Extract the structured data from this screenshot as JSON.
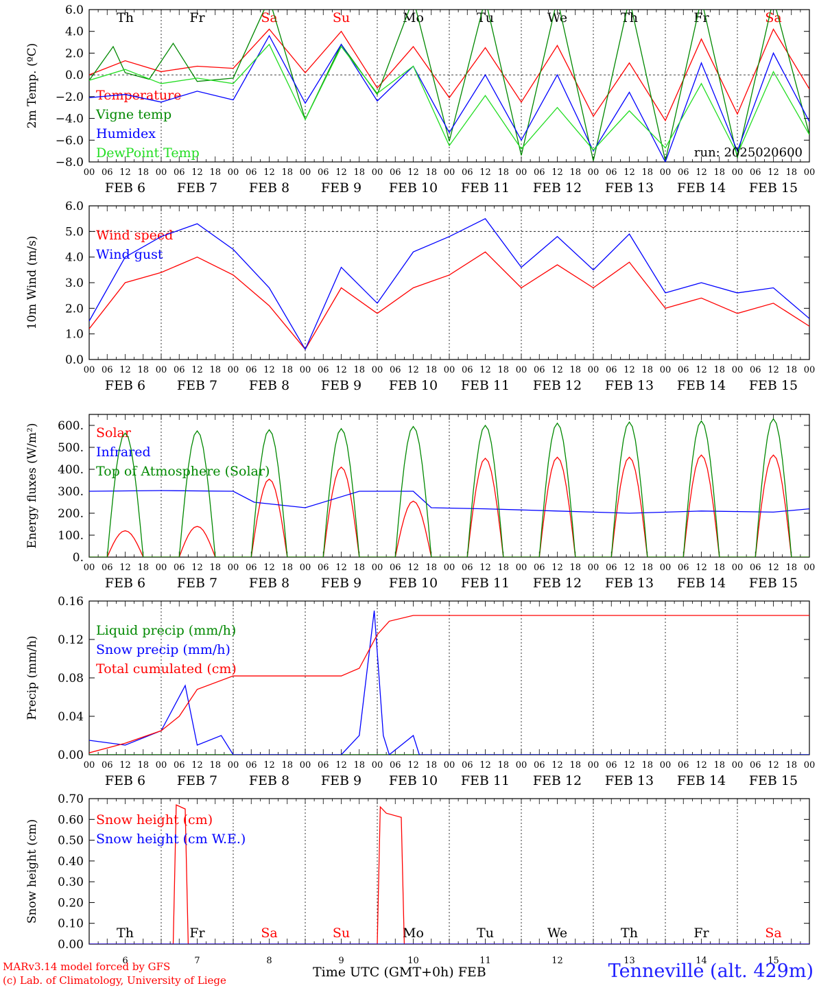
{
  "footer": {
    "model": "MARv3.14 model forced by GFS",
    "lab": "(c) Lab. of Climatology, University of Liege",
    "station": "Tenneville (alt. 429m)",
    "xaxis_title": "Time UTC (GMT+0h) FEB"
  },
  "colors": {
    "red": "#ff0000",
    "green": "#008800",
    "blue": "#0000ff",
    "lightgreen": "#22dd22",
    "weekend": "#ff0000"
  },
  "chart_data": {
    "days": [
      {
        "abbr": "Th",
        "date": "FEB 6",
        "num": "6",
        "weekend": false
      },
      {
        "abbr": "Fr",
        "date": "FEB 7",
        "num": "7",
        "weekend": false
      },
      {
        "abbr": "Sa",
        "date": "FEB 8",
        "num": "8",
        "weekend": true
      },
      {
        "abbr": "Su",
        "date": "FEB 9",
        "num": "9",
        "weekend": true
      },
      {
        "abbr": "Mo",
        "date": "FEB 10",
        "num": "10",
        "weekend": false
      },
      {
        "abbr": "Tu",
        "date": "FEB 11",
        "num": "11",
        "weekend": false
      },
      {
        "abbr": "We",
        "date": "FEB 12",
        "num": "12",
        "weekend": false
      },
      {
        "abbr": "Th",
        "date": "FEB 13",
        "num": "13",
        "weekend": false
      },
      {
        "abbr": "Fr",
        "date": "FEB 14",
        "num": "14",
        "weekend": false
      },
      {
        "abbr": "Sa",
        "date": "FEB 15",
        "num": "15",
        "weekend": true
      }
    ],
    "hour_labels": [
      "00",
      "06",
      "12",
      "18"
    ],
    "panels": [
      {
        "type": "line",
        "ylabel": "2m Temp. (ºC)",
        "ylim": [
          -8,
          6
        ],
        "yticks": [
          -8,
          -6,
          -4,
          -2,
          0,
          2,
          4,
          6
        ],
        "ytick_labels": [
          "−8.0",
          "−6.0",
          "−4.0",
          "−2.0",
          "0.0",
          "2.0",
          "4.0",
          "6.0"
        ],
        "ref_line": 0,
        "run_label": "run: 2025020600",
        "show_day_abbr": true,
        "series": [
          {
            "name": "Temperature",
            "color": "#ff0000",
            "x": [
              0,
              12,
              24,
              36,
              48,
              60,
              72,
              84,
              96,
              108,
              120,
              132,
              144,
              156,
              168,
              180,
              192,
              204,
              216,
              228,
              240
            ],
            "y": [
              0,
              1.3,
              0.3,
              0.8,
              0.6,
              4.2,
              0.2,
              4.0,
              -1.2,
              2.6,
              -2.1,
              2.5,
              -2.5,
              2.7,
              -3.8,
              1.1,
              -4.2,
              3.3,
              -3.6,
              4.2,
              -1.3
            ]
          },
          {
            "name": "Vigne temp",
            "color": "#008800",
            "x": [
              0,
              8,
              12,
              20,
              28,
              36,
              48,
              60,
              72,
              84,
              96,
              108,
              120,
              132,
              144,
              156,
              168,
              180,
              192,
              204,
              216,
              228,
              240
            ],
            "y": [
              -0.5,
              2.6,
              0.2,
              -0.4,
              2.9,
              -0.6,
              -0.3,
              7,
              -4.1,
              2.8,
              -1.8,
              7,
              -6.1,
              7,
              -7.4,
              7,
              -7.9,
              7,
              -7.9,
              7,
              -7.6,
              7,
              -5.5
            ]
          },
          {
            "name": "Humidex",
            "color": "#0000ff",
            "x": [
              0,
              12,
              24,
              36,
              48,
              60,
              72,
              84,
              96,
              108,
              120,
              132,
              144,
              156,
              168,
              180,
              192,
              204,
              216,
              228,
              240
            ],
            "y": [
              -2.1,
              -1.8,
              -2.5,
              -1.5,
              -2.3,
              3.6,
              -2.6,
              2.8,
              -2.4,
              0.8,
              -5.3,
              0,
              -6.0,
              0,
              -7.0,
              -1.6,
              -8,
              1.1,
              -7.0,
              2.0,
              -4.3
            ]
          },
          {
            "name": "DewPoint Temp",
            "color": "#22dd22",
            "x": [
              0,
              12,
              24,
              36,
              48,
              60,
              72,
              84,
              96,
              108,
              120,
              132,
              144,
              156,
              168,
              180,
              192,
              204,
              216,
              228,
              240
            ],
            "y": [
              -0.5,
              0.5,
              -0.8,
              -0.3,
              -0.8,
              2.8,
              -4.1,
              2.6,
              -1.7,
              0.8,
              -6.5,
              -1.9,
              -6.8,
              -3.0,
              -6.9,
              -3.3,
              -6.7,
              -0.8,
              -7.3,
              0.3,
              -5.5
            ]
          }
        ]
      },
      {
        "type": "line",
        "ylabel": "10m Wind (m/s)",
        "ylim": [
          0,
          6
        ],
        "yticks": [
          0,
          1,
          2,
          3,
          4,
          5,
          6
        ],
        "ytick_labels": [
          "0.0",
          "1.0",
          "2.0",
          "3.0",
          "4.0",
          "5.0",
          "6.0"
        ],
        "ref_line": 5,
        "show_day_abbr": false,
        "series": [
          {
            "name": "Wind speed",
            "color": "#ff0000",
            "x": [
              0,
              12,
              24,
              36,
              48,
              60,
              72,
              84,
              96,
              108,
              120,
              132,
              144,
              156,
              168,
              180,
              192,
              204,
              216,
              228,
              240
            ],
            "y": [
              1.2,
              3.0,
              3.4,
              4.0,
              3.3,
              2.1,
              0.4,
              2.8,
              1.8,
              2.8,
              3.3,
              4.2,
              2.8,
              3.7,
              2.8,
              3.8,
              2.0,
              2.4,
              1.8,
              2.2,
              1.3
            ]
          },
          {
            "name": "Wind gust",
            "color": "#0000ff",
            "x": [
              0,
              12,
              24,
              36,
              48,
              60,
              72,
              84,
              96,
              108,
              120,
              132,
              144,
              156,
              168,
              180,
              192,
              204,
              216,
              228,
              240
            ],
            "y": [
              1.5,
              4.0,
              4.8,
              5.3,
              4.3,
              2.8,
              0.4,
              3.6,
              2.2,
              4.2,
              4.8,
              5.5,
              3.6,
              4.8,
              3.5,
              4.9,
              2.6,
              3.0,
              2.6,
              2.8,
              1.6
            ]
          }
        ]
      },
      {
        "type": "line",
        "ylabel": "Energy fluxes (W/m²)",
        "ylim": [
          0,
          650
        ],
        "yticks": [
          0,
          100,
          200,
          300,
          400,
          500,
          600
        ],
        "ytick_labels": [
          "0.",
          "100.",
          "200.",
          "300.",
          "400.",
          "500.",
          "600."
        ],
        "show_day_abbr": false,
        "series": [
          {
            "name": "Solar",
            "peak_hour": 12,
            "color": "#ff0000",
            "daily_peaks": [
              120,
              140,
              355,
              410,
              255,
              450,
              455,
              455,
              465,
              465
            ]
          },
          {
            "name": "Infrared",
            "color": "#0000ff",
            "x": [
              0,
              24,
              48,
              55,
              72,
              90,
              96,
              108,
              114,
              132,
              156,
              180,
              204,
              228,
              240
            ],
            "y": [
              300,
              303,
              300,
              250,
              225,
              300,
              300,
              300,
              225,
              220,
              210,
              200,
              210,
              205,
              220
            ]
          },
          {
            "name": "Top of Atmosphere (Solar)",
            "peak_hour": 12,
            "color": "#008800",
            "daily_peaks": [
              565,
              575,
              580,
              585,
              595,
              600,
              610,
              615,
              620,
              630
            ]
          }
        ]
      },
      {
        "type": "line",
        "ylabel": "Precip (mm/h)",
        "ylim": [
          0,
          0.16
        ],
        "yticks": [
          0,
          0.04,
          0.08,
          0.12,
          0.16
        ],
        "ytick_labels": [
          "0.00",
          "0.04",
          "0.08",
          "0.12",
          "0.16"
        ],
        "show_day_abbr": false,
        "series": [
          {
            "name": "Liquid precip (mm/h)",
            "color": "#008800",
            "x": [
              0,
              240
            ],
            "y": [
              0,
              0
            ]
          },
          {
            "name": "Snow precip (mm/h)",
            "color": "#0000ff",
            "x": [
              0,
              12,
              24,
              32,
              36,
              44,
              48,
              60,
              84,
              90,
              95,
              98,
              100,
              108,
              110,
              120,
              240
            ],
            "y": [
              0.015,
              0.01,
              0.025,
              0.072,
              0.01,
              0.02,
              0.0,
              0.0,
              0.0,
              0.02,
              0.15,
              0.02,
              0.0,
              0.02,
              0.0,
              0.0,
              0.0
            ]
          },
          {
            "name": "Total cumulated (cm)",
            "color": "#ff0000",
            "x": [
              0,
              12,
              24,
              30,
              36,
              48,
              60,
              84,
              90,
              96,
              100,
              108,
              240
            ],
            "y": [
              0.002,
              0.012,
              0.025,
              0.04,
              0.068,
              0.082,
              0.082,
              0.082,
              0.09,
              0.125,
              0.139,
              0.145,
              0.145
            ]
          }
        ]
      },
      {
        "type": "line",
        "ylabel": "Snow height (cm)",
        "ylim": [
          0,
          0.7
        ],
        "yticks": [
          0,
          0.1,
          0.2,
          0.3,
          0.4,
          0.5,
          0.6,
          0.7
        ],
        "ytick_labels": [
          "0.00",
          "0.10",
          "0.20",
          "0.30",
          "0.40",
          "0.50",
          "0.60",
          "0.70"
        ],
        "show_day_abbr_bottom": true,
        "series": [
          {
            "name": "Snow height (cm)",
            "color": "#ff0000",
            "x": [
              0,
              28,
              29,
              32,
              33,
              96,
              97,
              99,
              104,
              105,
              240
            ],
            "y": [
              0,
              0,
              0.67,
              0.65,
              0,
              0,
              0.66,
              0.63,
              0.61,
              0,
              0
            ]
          },
          {
            "name": "Snow height (cm W.E.)",
            "color": "#0000ff",
            "x": [
              0,
              240
            ],
            "y": [
              0,
              0
            ]
          }
        ]
      }
    ]
  }
}
